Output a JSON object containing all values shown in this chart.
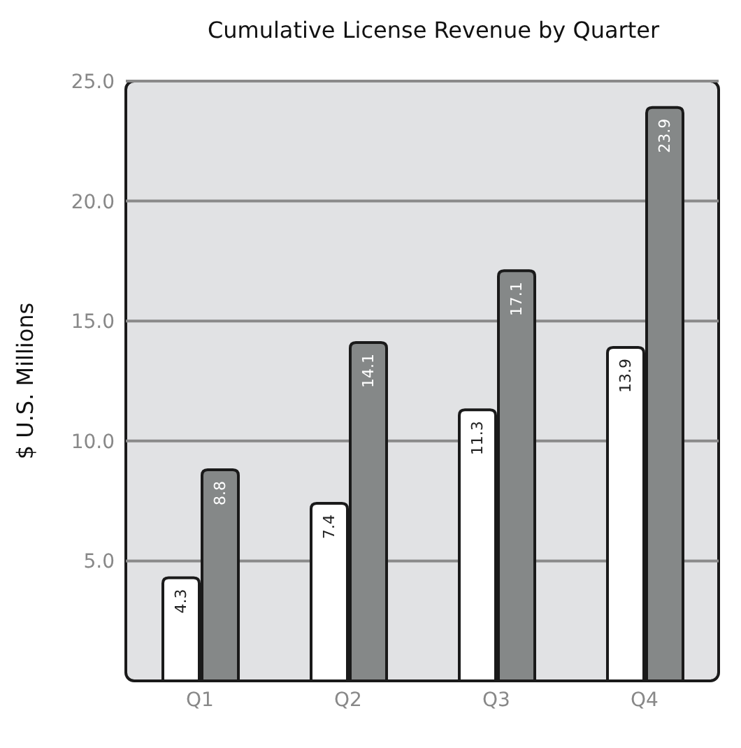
{
  "chart_data": {
    "type": "bar",
    "title": "Cumulative License Revenue by Quarter",
    "ylabel": "$ U.S. Millions",
    "categories": [
      "Q1",
      "Q2",
      "Q3",
      "Q4"
    ],
    "series": [
      {
        "color": "#ffffff",
        "values": [
          4.3,
          7.4,
          11.3,
          13.9
        ]
      },
      {
        "color": "#858888",
        "values": [
          8.8,
          14.1,
          17.1,
          23.9
        ]
      }
    ],
    "ylim": [
      0,
      25
    ],
    "yticks": [
      {
        "value": 5,
        "label": "5.0"
      },
      {
        "value": 10,
        "label": "10.0"
      },
      {
        "value": 15,
        "label": "15.0"
      },
      {
        "value": 20,
        "label": "20.0"
      },
      {
        "value": 25,
        "label": "25.0"
      }
    ],
    "grid": "y",
    "data_labels": true,
    "legend": false
  }
}
